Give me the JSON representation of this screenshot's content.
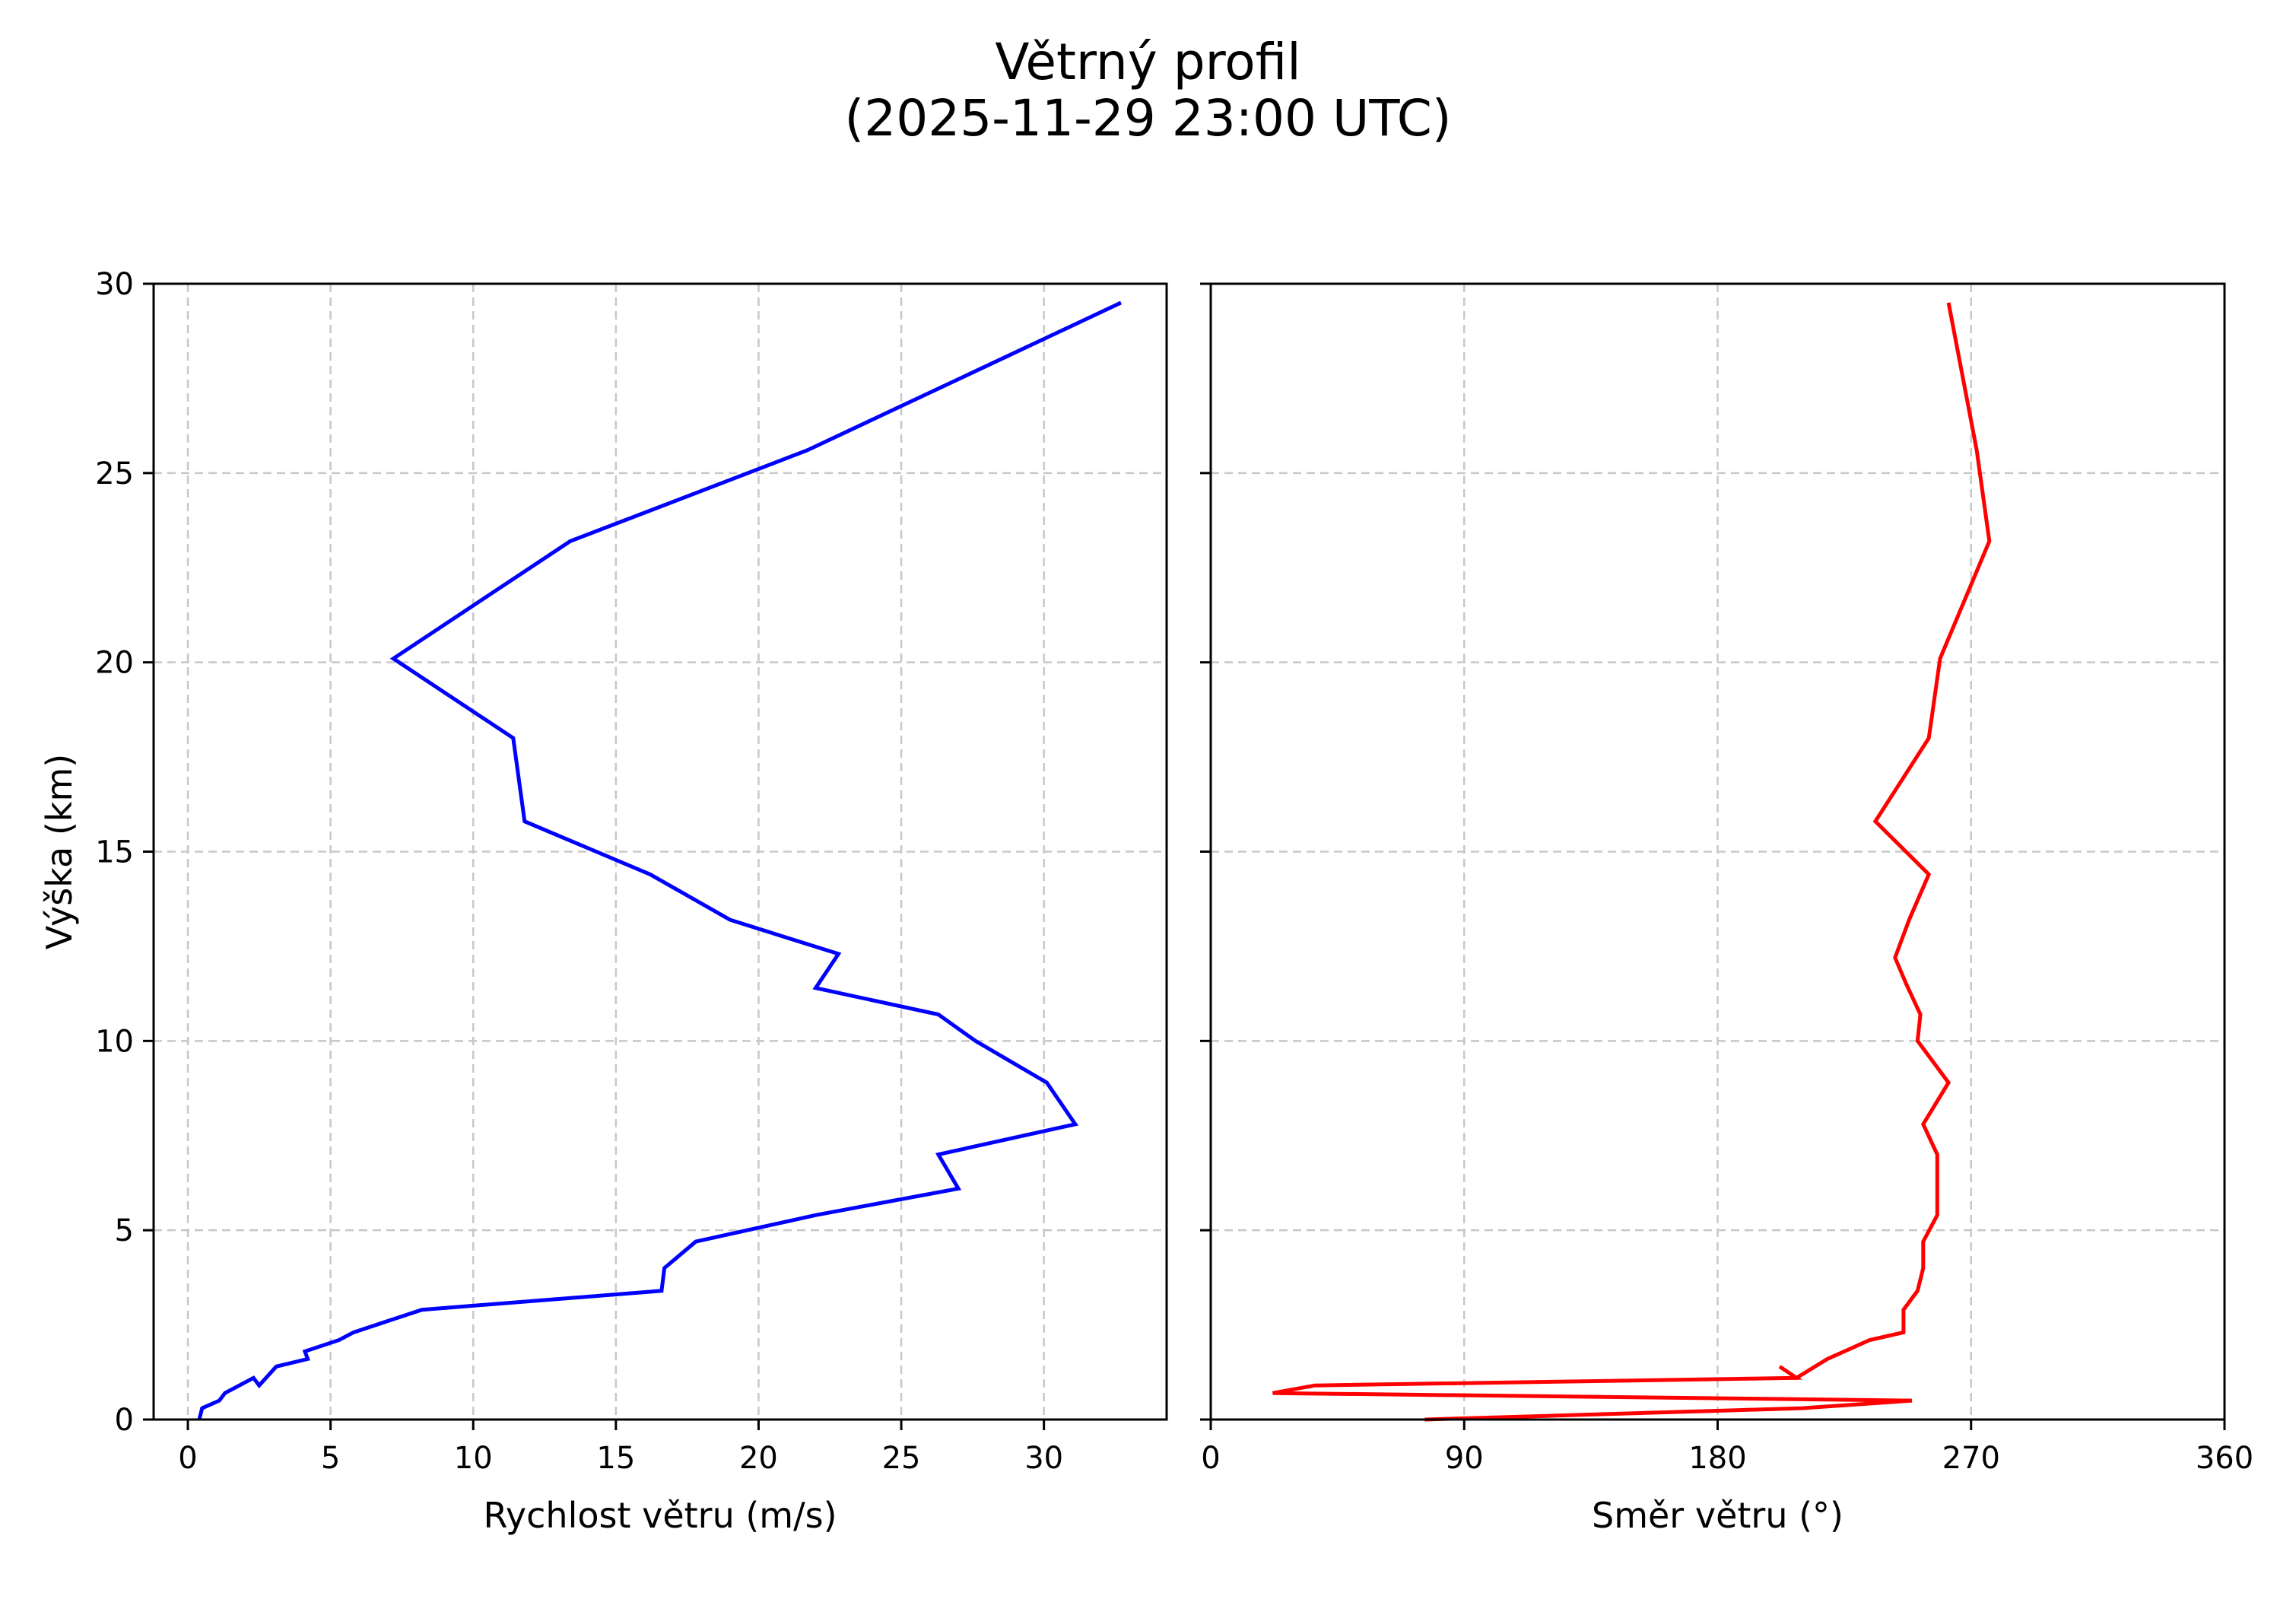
{
  "title": {
    "line1": "Větrný profil",
    "line2": "(2025-11-29 23:00 UTC)"
  },
  "colors": {
    "speed_line": "#0000ff",
    "direction_line": "#ff0000",
    "grid": "#c8c8c8",
    "axes": "#000000"
  },
  "chart_data": [
    {
      "type": "line",
      "title": "",
      "xlabel": "Rychlost větru (m/s)",
      "ylabel": "Výška (km)",
      "xlim": [
        -1.2,
        34.3
      ],
      "ylim": [
        0,
        30
      ],
      "xticks": [
        0,
        5,
        10,
        15,
        20,
        25,
        30
      ],
      "yticks": [
        0,
        5,
        10,
        15,
        20,
        25,
        30
      ],
      "grid": true,
      "grid_style": "dashed",
      "legend": null,
      "series": [
        {
          "name": "Rychlost větru",
          "color": "#0000ff",
          "x": [
            0.4,
            0.5,
            1.1,
            1.3,
            2.3,
            2.5,
            3.1,
            4.2,
            4.1,
            5.3,
            5.8,
            8.2,
            16.6,
            16.7,
            17.8,
            22.0,
            27.0,
            26.3,
            31.1,
            30.1,
            27.6,
            26.3,
            22.0,
            22.8,
            19.0,
            16.2,
            11.8,
            11.4,
            7.2,
            13.4,
            21.7,
            32.7
          ],
          "y": [
            0.0,
            0.3,
            0.5,
            0.7,
            1.1,
            0.9,
            1.4,
            1.6,
            1.8,
            2.1,
            2.3,
            2.9,
            3.4,
            4.0,
            4.7,
            5.4,
            6.1,
            7.0,
            7.8,
            8.9,
            10.0,
            10.7,
            11.4,
            12.3,
            13.2,
            14.4,
            15.8,
            18.0,
            20.1,
            23.2,
            25.6,
            29.5
          ]
        }
      ]
    },
    {
      "type": "line",
      "title": "",
      "xlabel": "Směr větru (°)",
      "ylabel": "",
      "xlim": [
        0,
        360
      ],
      "ylim": [
        0,
        30
      ],
      "xticks": [
        0,
        90,
        180,
        270,
        360
      ],
      "yticks": [
        0,
        5,
        10,
        15,
        20,
        25,
        30
      ],
      "ytick_labels_visible": false,
      "grid": true,
      "grid_style": "dashed",
      "legend": null,
      "series": [
        {
          "name": "Směr větru",
          "color": "#ff0000",
          "x": [
            76,
            210,
            249,
            22,
            37,
            208,
            202,
            208,
            219,
            234,
            246,
            246,
            251,
            253,
            253,
            258,
            258,
            253,
            262,
            251,
            252,
            247,
            243,
            248,
            255,
            236,
            255,
            259,
            276.5,
            272,
            262
          ],
          "y": [
            0.0,
            0.3,
            0.5,
            0.7,
            0.9,
            1.1,
            1.4,
            1.1,
            1.6,
            2.1,
            2.3,
            2.9,
            3.4,
            4.0,
            4.7,
            5.4,
            7.0,
            7.8,
            8.9,
            10.0,
            10.7,
            11.5,
            12.2,
            13.2,
            14.4,
            15.8,
            18.0,
            20.1,
            23.2,
            25.6,
            29.5
          ]
        }
      ]
    }
  ]
}
